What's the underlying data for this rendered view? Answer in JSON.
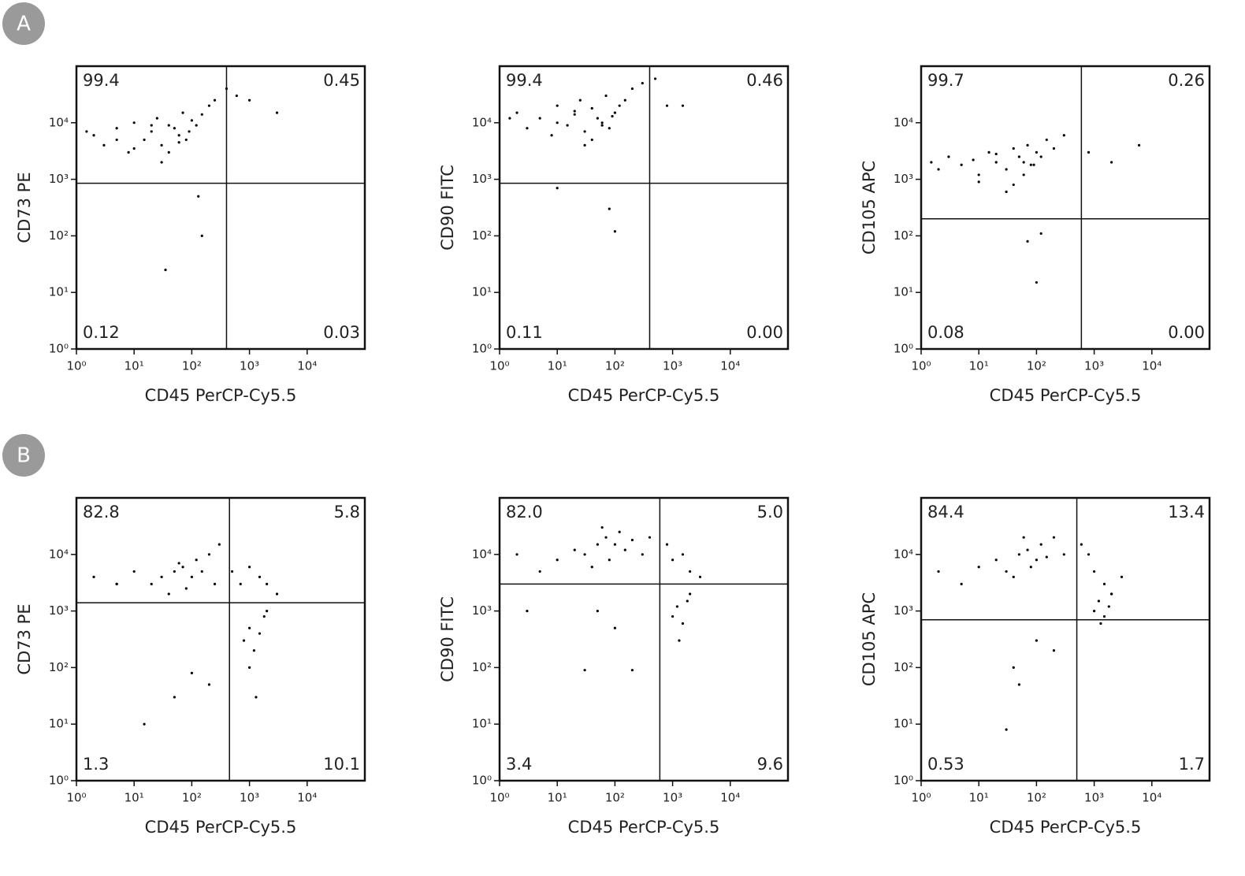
{
  "panel_labels": [
    "A",
    "B"
  ],
  "chart_data": [
    {
      "type": "scatter",
      "xlabel": "CD45 PerCP-Cy5.5",
      "ylabel": "CD73 PE",
      "log_x": true,
      "log_y": true,
      "color": "#000000",
      "xlim": [
        1,
        100000
      ],
      "ylim": [
        1,
        100000
      ],
      "xticks": [
        {
          "value": 1,
          "label": "10⁰"
        },
        {
          "value": 10,
          "label": "10¹"
        },
        {
          "value": 100,
          "label": "10²"
        },
        {
          "value": 1000,
          "label": "10³"
        },
        {
          "value": 10000,
          "label": "10⁴"
        }
      ],
      "yticks": [
        {
          "value": 1,
          "label": "10⁰"
        },
        {
          "value": 10,
          "label": "10¹"
        },
        {
          "value": 100,
          "label": "10²"
        },
        {
          "value": 1000,
          "label": "10³"
        },
        {
          "value": 10000,
          "label": "10⁴"
        }
      ],
      "gate": {
        "x": 400,
        "y": 850
      },
      "quadrant_labels": [
        "99.4",
        "0.45",
        "0.12",
        "0.03"
      ],
      "x": [
        2,
        3,
        5,
        8,
        10,
        15,
        20,
        25,
        30,
        40,
        50,
        60,
        70,
        80,
        100,
        120,
        150,
        200,
        250,
        40,
        30,
        60,
        90,
        20,
        10,
        5,
        1.5,
        400,
        600,
        1000,
        3000,
        130,
        150,
        35
      ],
      "y": [
        6000,
        4000,
        8000,
        3000,
        10000,
        5000,
        7000,
        12000,
        4000,
        9000,
        8000,
        6000,
        15000,
        5000,
        11000,
        9000,
        14000,
        20000,
        25000,
        3000,
        2000,
        4500,
        7000,
        9000,
        3500,
        5000,
        7000,
        40000,
        30000,
        25000,
        15000,
        500,
        100,
        25
      ]
    },
    {
      "type": "scatter",
      "xlabel": "CD45 PerCP-Cy5.5",
      "ylabel": "CD90 FITC",
      "log_x": true,
      "log_y": true,
      "color": "#000000",
      "xlim": [
        1,
        100000
      ],
      "ylim": [
        1,
        100000
      ],
      "xticks": [
        {
          "value": 1,
          "label": "10⁰"
        },
        {
          "value": 10,
          "label": "10¹"
        },
        {
          "value": 100,
          "label": "10²"
        },
        {
          "value": 1000,
          "label": "10³"
        },
        {
          "value": 10000,
          "label": "10⁴"
        }
      ],
      "yticks": [
        {
          "value": 1,
          "label": "10⁰"
        },
        {
          "value": 10,
          "label": "10¹"
        },
        {
          "value": 100,
          "label": "10²"
        },
        {
          "value": 1000,
          "label": "10³"
        },
        {
          "value": 10000,
          "label": "10⁴"
        }
      ],
      "gate": {
        "x": 400,
        "y": 850
      },
      "quadrant_labels": [
        "99.4",
        "0.46",
        "0.11",
        "0.00"
      ],
      "x": [
        2,
        3,
        5,
        8,
        10,
        15,
        20,
        25,
        30,
        40,
        50,
        60,
        70,
        80,
        100,
        120,
        150,
        200,
        300,
        40,
        30,
        60,
        90,
        20,
        10,
        1.5,
        500,
        800,
        1500,
        80,
        100,
        10
      ],
      "y": [
        15000,
        8000,
        12000,
        6000,
        20000,
        9000,
        14000,
        25000,
        7000,
        18000,
        12000,
        10000,
        30000,
        8000,
        15000,
        20000,
        25000,
        40000,
        50000,
        5000,
        4000,
        9000,
        13000,
        16000,
        10000,
        12000,
        60000,
        20000,
        20000,
        300,
        120,
        700
      ]
    },
    {
      "type": "scatter",
      "xlabel": "CD45 PerCP-Cy5.5",
      "ylabel": "CD105 APC",
      "log_x": true,
      "log_y": true,
      "color": "#000000",
      "xlim": [
        1,
        100000
      ],
      "ylim": [
        1,
        100000
      ],
      "xticks": [
        {
          "value": 1,
          "label": "10⁰"
        },
        {
          "value": 10,
          "label": "10¹"
        },
        {
          "value": 100,
          "label": "10²"
        },
        {
          "value": 1000,
          "label": "10³"
        },
        {
          "value": 10000,
          "label": "10⁴"
        }
      ],
      "yticks": [
        {
          "value": 1,
          "label": "10⁰"
        },
        {
          "value": 10,
          "label": "10¹"
        },
        {
          "value": 100,
          "label": "10²"
        },
        {
          "value": 1000,
          "label": "10³"
        },
        {
          "value": 10000,
          "label": "10⁴"
        }
      ],
      "gate": {
        "x": 600,
        "y": 200
      },
      "quadrant_labels": [
        "99.7",
        "0.26",
        "0.08",
        "0.00"
      ],
      "x": [
        1.5,
        2,
        3,
        5,
        8,
        10,
        15,
        20,
        30,
        40,
        50,
        60,
        70,
        80,
        100,
        120,
        150,
        200,
        300,
        40,
        30,
        60,
        90,
        20,
        10,
        800,
        2000,
        6000,
        70,
        100,
        120
      ],
      "y": [
        2000,
        1500,
        2500,
        1800,
        2200,
        1200,
        3000,
        2000,
        1500,
        3500,
        2500,
        2000,
        4000,
        1800,
        3000,
        2500,
        5000,
        3500,
        6000,
        800,
        600,
        1200,
        1800,
        2800,
        900,
        3000,
        2000,
        4000,
        80,
        15,
        110
      ]
    },
    {
      "type": "scatter",
      "xlabel": "CD45 PerCP-Cy5.5",
      "ylabel": "CD73 PE",
      "log_x": true,
      "log_y": true,
      "color": "#000000",
      "xlim": [
        1,
        100000
      ],
      "ylim": [
        1,
        100000
      ],
      "xticks": [
        {
          "value": 1,
          "label": "10⁰"
        },
        {
          "value": 10,
          "label": "10¹"
        },
        {
          "value": 100,
          "label": "10²"
        },
        {
          "value": 1000,
          "label": "10³"
        },
        {
          "value": 10000,
          "label": "10⁴"
        }
      ],
      "yticks": [
        {
          "value": 1,
          "label": "10⁰"
        },
        {
          "value": 10,
          "label": "10¹"
        },
        {
          "value": 100,
          "label": "10²"
        },
        {
          "value": 1000,
          "label": "10³"
        },
        {
          "value": 10000,
          "label": "10⁴"
        }
      ],
      "gate": {
        "x": 450,
        "y": 1400
      },
      "quadrant_labels": [
        "82.8",
        "5.8",
        "1.3",
        "10.1"
      ],
      "x": [
        2,
        5,
        10,
        20,
        30,
        50,
        70,
        100,
        120,
        150,
        200,
        250,
        80,
        60,
        40,
        300,
        500,
        700,
        1000,
        1500,
        2000,
        3000,
        800,
        1000,
        1200,
        1500,
        1800,
        2000,
        1000,
        1300,
        100,
        50,
        15,
        200,
        5
      ],
      "y": [
        4000,
        3000,
        5000,
        3000,
        4000,
        5000,
        6000,
        4000,
        8000,
        5000,
        10000,
        3000,
        2500,
        7000,
        2000,
        15000,
        5000,
        3000,
        6000,
        4000,
        3000,
        2000,
        300,
        500,
        200,
        400,
        800,
        1000,
        100,
        30,
        80,
        30,
        10,
        50,
        3000
      ]
    },
    {
      "type": "scatter",
      "xlabel": "CD45 PerCP-Cy5.5",
      "ylabel": "CD90 FITC",
      "log_x": true,
      "log_y": true,
      "color": "#000000",
      "xlim": [
        1,
        100000
      ],
      "ylim": [
        1,
        100000
      ],
      "xticks": [
        {
          "value": 1,
          "label": "10⁰"
        },
        {
          "value": 10,
          "label": "10¹"
        },
        {
          "value": 100,
          "label": "10²"
        },
        {
          "value": 1000,
          "label": "10³"
        },
        {
          "value": 10000,
          "label": "10⁴"
        }
      ],
      "yticks": [
        {
          "value": 1,
          "label": "10⁰"
        },
        {
          "value": 10,
          "label": "10¹"
        },
        {
          "value": 100,
          "label": "10²"
        },
        {
          "value": 1000,
          "label": "10³"
        },
        {
          "value": 10000,
          "label": "10⁴"
        }
      ],
      "gate": {
        "x": 600,
        "y": 3000
      },
      "quadrant_labels": [
        "82.0",
        "5.0",
        "3.4",
        "9.6"
      ],
      "x": [
        2,
        5,
        10,
        20,
        30,
        50,
        70,
        100,
        120,
        150,
        200,
        300,
        80,
        60,
        40,
        400,
        800,
        1000,
        1500,
        2000,
        3000,
        1000,
        1200,
        1500,
        1800,
        2000,
        1300,
        50,
        100,
        200,
        30,
        3
      ],
      "y": [
        10000,
        5000,
        8000,
        12000,
        10000,
        15000,
        20000,
        15000,
        25000,
        12000,
        18000,
        10000,
        8000,
        30000,
        6000,
        20000,
        15000,
        8000,
        10000,
        5000,
        4000,
        800,
        1200,
        600,
        1500,
        2000,
        300,
        1000,
        500,
        90,
        90,
        1000
      ]
    },
    {
      "type": "scatter",
      "xlabel": "CD45 PerCP-Cy5.5",
      "ylabel": "CD105 APC",
      "log_x": true,
      "log_y": true,
      "color": "#000000",
      "xlim": [
        1,
        100000
      ],
      "ylim": [
        1,
        100000
      ],
      "xticks": [
        {
          "value": 1,
          "label": "10⁰"
        },
        {
          "value": 10,
          "label": "10¹"
        },
        {
          "value": 100,
          "label": "10²"
        },
        {
          "value": 1000,
          "label": "10³"
        },
        {
          "value": 10000,
          "label": "10⁴"
        }
      ],
      "yticks": [
        {
          "value": 1,
          "label": "10⁰"
        },
        {
          "value": 10,
          "label": "10¹"
        },
        {
          "value": 100,
          "label": "10²"
        },
        {
          "value": 1000,
          "label": "10³"
        },
        {
          "value": 10000,
          "label": "10⁴"
        }
      ],
      "gate": {
        "x": 500,
        "y": 700
      },
      "quadrant_labels": [
        "84.4",
        "13.4",
        "0.53",
        "1.7"
      ],
      "x": [
        2,
        5,
        10,
        20,
        30,
        50,
        70,
        100,
        120,
        150,
        200,
        300,
        80,
        60,
        40,
        600,
        800,
        1000,
        1500,
        2000,
        3000,
        1000,
        1200,
        1500,
        1800,
        2000,
        1300,
        100,
        200,
        40,
        30,
        50
      ],
      "y": [
        5000,
        3000,
        6000,
        8000,
        5000,
        10000,
        12000,
        8000,
        15000,
        9000,
        20000,
        10000,
        6000,
        20000,
        4000,
        15000,
        10000,
        5000,
        3000,
        2000,
        4000,
        1000,
        1500,
        800,
        1200,
        2000,
        600,
        300,
        200,
        100,
        8,
        50
      ]
    }
  ]
}
